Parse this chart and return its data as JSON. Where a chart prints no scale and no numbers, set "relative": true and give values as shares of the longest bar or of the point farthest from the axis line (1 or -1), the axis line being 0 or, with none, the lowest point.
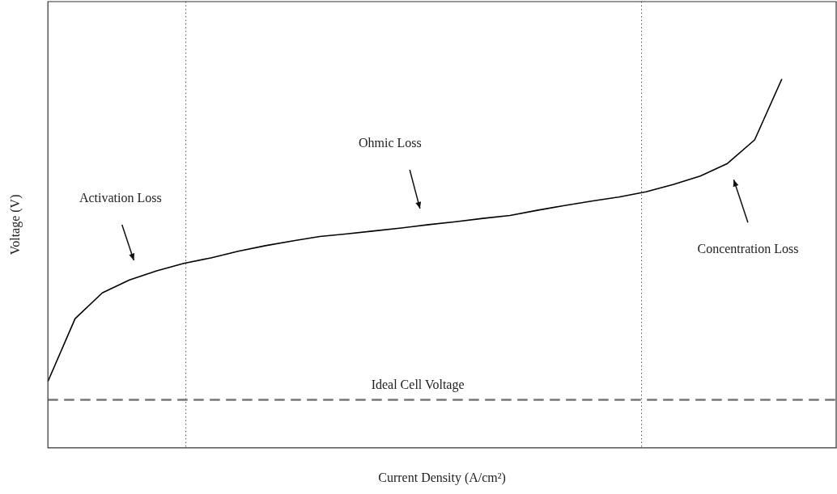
{
  "chart_data": {
    "type": "line",
    "relative": true,
    "xlabel": "Current Density (A/cm²)",
    "ylabel": "Voltage (V)",
    "marker": "none",
    "line_style": "solid",
    "categories": [
      null,
      null,
      null,
      null,
      null,
      null,
      null,
      null,
      null,
      null,
      null,
      null,
      null,
      null,
      null,
      null,
      null,
      null,
      null,
      null,
      null,
      null,
      null,
      null,
      null,
      null,
      null,
      null,
      null,
      null
    ],
    "series": [
      {
        "color": "#000000",
        "values": [
          0.18,
          0.35,
          0.42,
          0.455,
          0.48,
          0.5,
          0.515,
          0.533,
          0.548,
          0.561,
          0.573,
          0.58,
          0.588,
          0.596,
          0.605,
          0.613,
          0.622,
          0.63,
          0.644,
          0.657,
          0.669,
          0.68,
          0.694,
          0.714,
          0.737,
          0.771,
          0.835,
          1,
          null,
          null
        ]
      }
    ],
    "ref_lines": [
      {
        "axis": "y",
        "value": 0.13,
        "label": "Ideal Cell Voltage",
        "color": "#777777",
        "line_style": "dashed"
      }
    ],
    "annotations": [
      "Activation Loss",
      "Ohmic Loss",
      "Concentration Loss"
    ]
  }
}
